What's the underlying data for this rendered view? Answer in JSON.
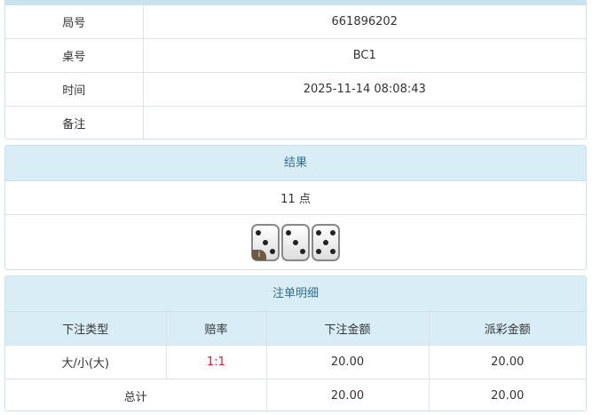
{
  "info": {
    "rows": [
      {
        "label": "局号",
        "value": "661896202"
      },
      {
        "label": "桌号",
        "value": "BC1"
      },
      {
        "label": "时间",
        "value": "2025-11-14 08:08:43"
      },
      {
        "label": "备注",
        "value": ""
      }
    ]
  },
  "result": {
    "title": "结果",
    "points": "11 点",
    "dice": [
      3,
      3,
      5
    ],
    "info_badge": "i"
  },
  "bets": {
    "title": "注单明细",
    "headers": [
      "下注类型",
      "赔率",
      "下注金额",
      "派彩金额"
    ],
    "rows": [
      {
        "type": "大/小(大)",
        "odds": "1:1",
        "amount": "20.00",
        "payout": "20.00"
      }
    ],
    "total": {
      "label": "总计",
      "amount": "20.00",
      "payout": "20.00"
    },
    "odds_color": "#e02020"
  }
}
